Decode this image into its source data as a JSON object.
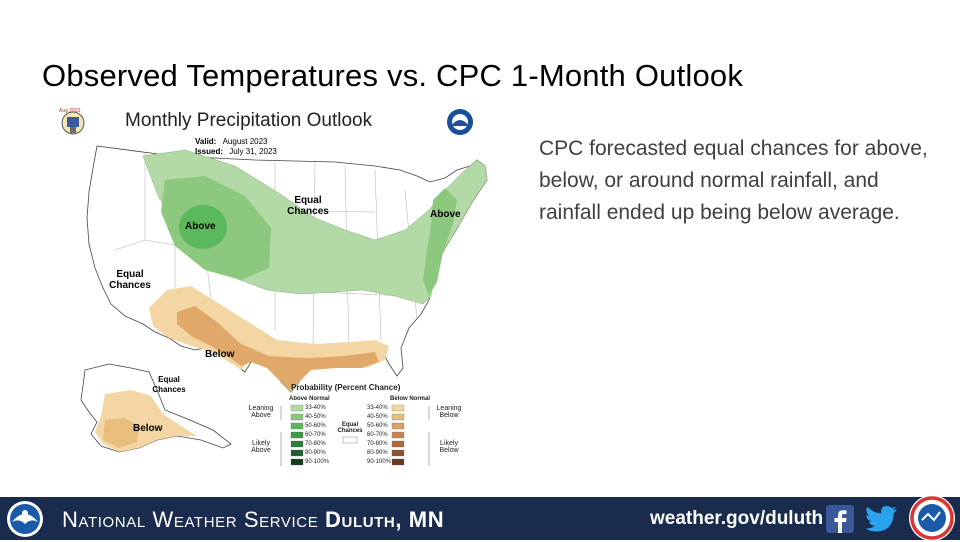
{
  "slide": {
    "title": "Observed Temperatures vs. CPC 1-Month Outlook",
    "body_text": "CPC forecasted equal chances for above, below, or around normal rainfall, and rainfall ended up being below average."
  },
  "map": {
    "small_stamp": "Aug 2023",
    "title": "Monthly Precipitation Outlook",
    "valid_label": "Valid:",
    "valid_value": "August 2023",
    "issued_label": "Issued:",
    "issued_value": "July 31, 2023",
    "labels": {
      "above_center": "Above",
      "above_east": "Above",
      "below_south": "Below",
      "below_alaska": "Below",
      "equal_chances_central": "Equal Chances",
      "equal_chances_west": "Equal Chances",
      "equal_chances_alaska": "Equal Chances"
    },
    "legend": {
      "title": "Probability (Percent Chance)",
      "above_header": "Above Normal",
      "below_header": "Below Normal",
      "leaning_above": "Leaning Above",
      "likely_above": "Likely Above",
      "leaning_below": "Leaning Below",
      "likely_below": "Likely Below",
      "equal_chances": "Equal Chances",
      "ranges": [
        "33-40%",
        "40-50%",
        "50-60%",
        "60-70%",
        "70-80%",
        "80-90%",
        "90-100%"
      ],
      "above_colors": [
        "#b3d9a6",
        "#8cc97f",
        "#5cb85c",
        "#3d9b4a",
        "#2a7d3b",
        "#1d5e2c",
        "#0f3d1a"
      ],
      "below_colors": [
        "#f3d6a4",
        "#e9bd7b",
        "#dba062",
        "#c9854f",
        "#ae6a3c",
        "#8c5230",
        "#633820"
      ]
    }
  },
  "footer": {
    "org_prefix": "National Weather Service",
    "org_office": "Duluth, MN",
    "url": "weather.gov/duluth"
  },
  "icons": {
    "noaa": "noaa-logo-icon",
    "facebook": "facebook-icon",
    "twitter": "twitter-icon",
    "weather_ready_nation": "weather-ready-nation-icon"
  },
  "colors": {
    "footer_bg": "#192c4d",
    "above_light": "#b3d9a6",
    "above_mid": "#8cc97f",
    "above_dark": "#5cb85c",
    "below_light": "#f3d6a4",
    "below_mid": "#e0a96a"
  }
}
